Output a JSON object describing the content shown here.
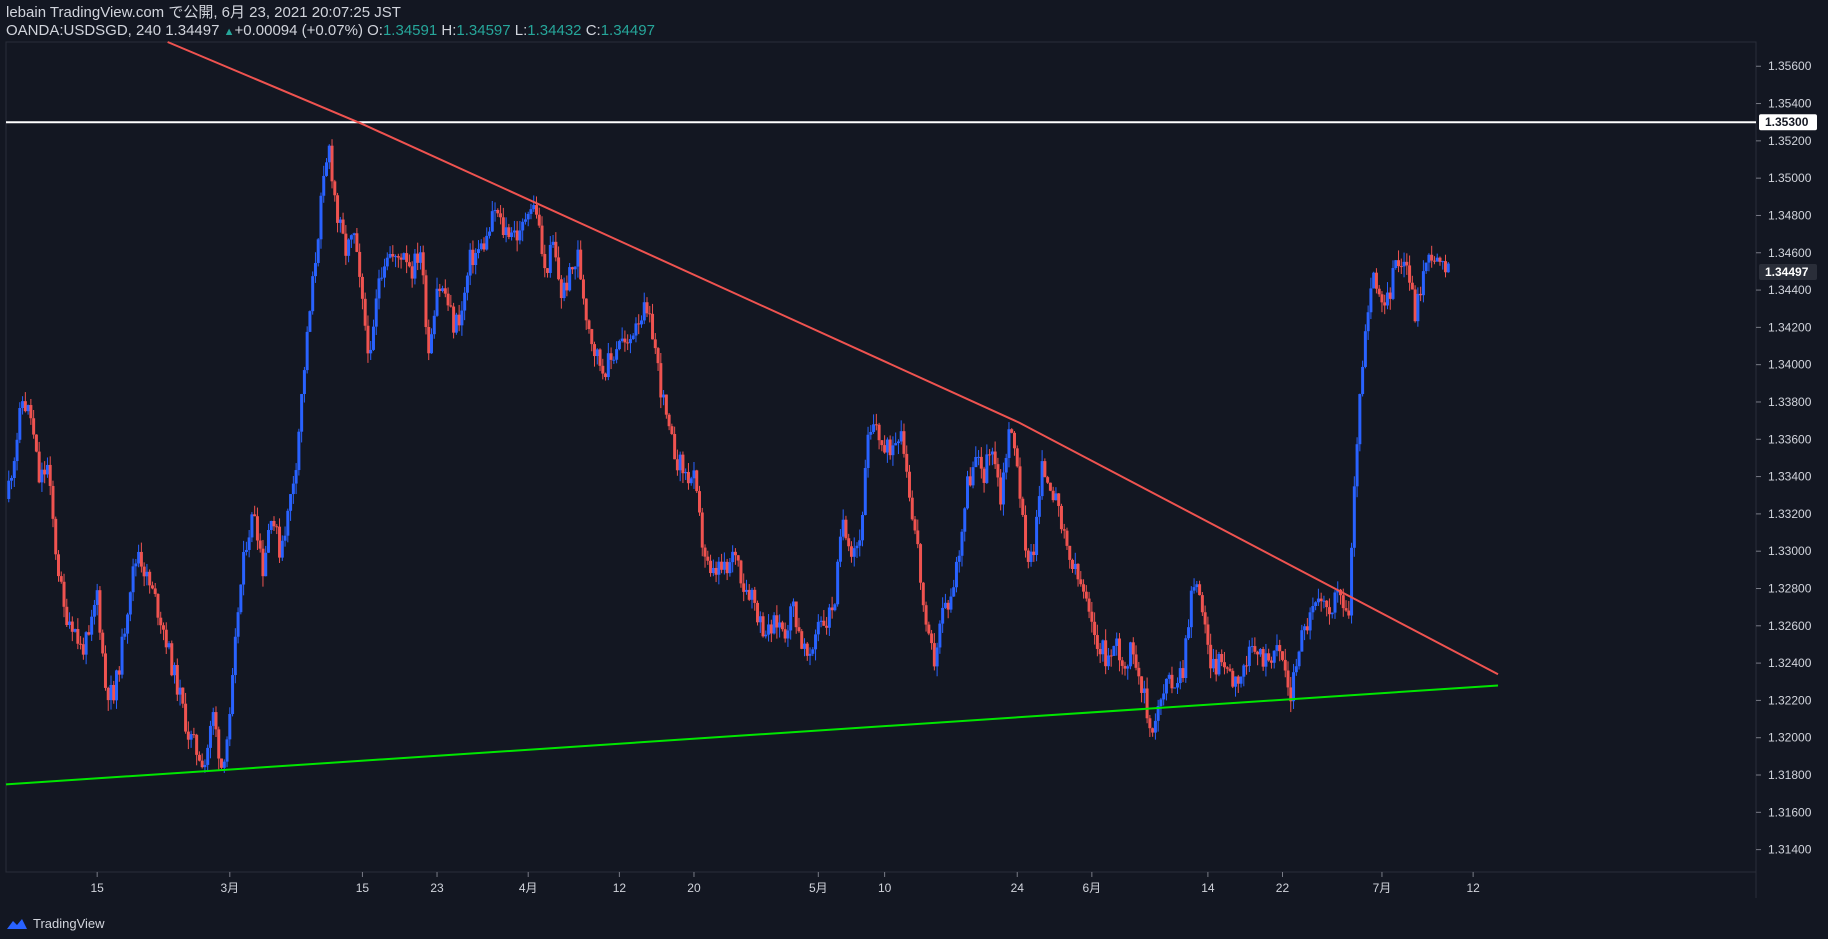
{
  "header": {
    "line1": "lebain TradingView.com で公開, 6月 23, 2021 20:07:25 JST",
    "symbol": "OANDA:USDSGD, 240",
    "last": "1.34497",
    "change": "+0.00094 (+0.07%)",
    "o_label": "O:",
    "o_value": "1.34591",
    "h_label": "H:",
    "h_value": "1.34597",
    "l_label": "L:",
    "l_value": "1.34432",
    "c_label": "C:",
    "c_value": "1.34497"
  },
  "footer": {
    "brand": "TradingView"
  },
  "colors": {
    "background": "#131722",
    "up": "#2962ff",
    "down": "#ef5350",
    "resistance": "#ef5350",
    "support": "#00e600",
    "horizontal": "#ffffff"
  },
  "chart_data": {
    "type": "candlestick",
    "symbol": "OANDA:USDSGD",
    "interval": "240",
    "y_range": [
      1.3128,
      1.3573
    ],
    "x_range_days": [
      0,
      180
    ],
    "y_ticks": [
      "1.35600",
      "1.35400",
      "1.35200",
      "1.35000",
      "1.34800",
      "1.34600",
      "1.34400",
      "1.34200",
      "1.34000",
      "1.33800",
      "1.33600",
      "1.33400",
      "1.33200",
      "1.33000",
      "1.32800",
      "1.32600",
      "1.32400",
      "1.32200",
      "1.32000",
      "1.31800",
      "1.31600",
      "1.31400"
    ],
    "x_ticks": [
      {
        "label": "15",
        "day": 11
      },
      {
        "label": "3月",
        "day": 27
      },
      {
        "label": "15",
        "day": 43
      },
      {
        "label": "23",
        "day": 52
      },
      {
        "label": "4月",
        "day": 63
      },
      {
        "label": "12",
        "day": 74
      },
      {
        "label": "20",
        "day": 83
      },
      {
        "label": "5月",
        "day": 98
      },
      {
        "label": "10",
        "day": 106
      },
      {
        "label": "24",
        "day": 122
      },
      {
        "label": "6月",
        "day": 131
      },
      {
        "label": "14",
        "day": 145
      },
      {
        "label": "22",
        "day": 154
      },
      {
        "label": "7月",
        "day": 166
      },
      {
        "label": "12",
        "day": 177
      }
    ],
    "price_path": [
      [
        0,
        1.3328
      ],
      [
        1,
        1.3352
      ],
      [
        2,
        1.3381
      ],
      [
        3,
        1.3372
      ],
      [
        4,
        1.3338
      ],
      [
        5,
        1.3345
      ],
      [
        6,
        1.3301
      ],
      [
        7,
        1.3268
      ],
      [
        8,
        1.3262
      ],
      [
        9,
        1.3248
      ],
      [
        10,
        1.3252
      ],
      [
        11,
        1.3278
      ],
      [
        12,
        1.3228
      ],
      [
        13,
        1.3221
      ],
      [
        14,
        1.3249
      ],
      [
        15,
        1.3282
      ],
      [
        16,
        1.3301
      ],
      [
        17,
        1.3285
      ],
      [
        18,
        1.3274
      ],
      [
        19,
        1.3259
      ],
      [
        20,
        1.3239
      ],
      [
        21,
        1.3222
      ],
      [
        22,
        1.3202
      ],
      [
        23,
        1.3193
      ],
      [
        24,
        1.3187
      ],
      [
        25,
        1.3212
      ],
      [
        26,
        1.3185
      ],
      [
        27,
        1.3208
      ],
      [
        28,
        1.3269
      ],
      [
        29,
        1.3306
      ],
      [
        30,
        1.3322
      ],
      [
        31,
        1.3291
      ],
      [
        32,
        1.3322
      ],
      [
        33,
        1.3301
      ],
      [
        34,
        1.3319
      ],
      [
        35,
        1.3349
      ],
      [
        36,
        1.3399
      ],
      [
        37,
        1.3443
      ],
      [
        38,
        1.3486
      ],
      [
        39,
        1.3516
      ],
      [
        40,
        1.3478
      ],
      [
        41,
        1.3461
      ],
      [
        42,
        1.3468
      ],
      [
        43,
        1.3431
      ],
      [
        44,
        1.3402
      ],
      [
        45,
        1.3448
      ],
      [
        46,
        1.3461
      ],
      [
        47,
        1.3455
      ],
      [
        48,
        1.3462
      ],
      [
        49,
        1.3451
      ],
      [
        50,
        1.3462
      ],
      [
        51,
        1.3408
      ],
      [
        52,
        1.3443
      ],
      [
        53,
        1.3438
      ],
      [
        54,
        1.3421
      ],
      [
        55,
        1.3428
      ],
      [
        56,
        1.3456
      ],
      [
        57,
        1.3461
      ],
      [
        58,
        1.3467
      ],
      [
        59,
        1.3483
      ],
      [
        60,
        1.3472
      ],
      [
        61,
        1.3473
      ],
      [
        62,
        1.3468
      ],
      [
        63,
        1.3486
      ],
      [
        64,
        1.3483
      ],
      [
        65,
        1.3449
      ],
      [
        66,
        1.3464
      ],
      [
        67,
        1.3438
      ],
      [
        68,
        1.3447
      ],
      [
        69,
        1.3458
      ],
      [
        70,
        1.3428
      ],
      [
        71,
        1.3408
      ],
      [
        72,
        1.3398
      ],
      [
        73,
        1.3402
      ],
      [
        74,
        1.3415
      ],
      [
        75,
        1.3408
      ],
      [
        76,
        1.3425
      ],
      [
        77,
        1.3428
      ],
      [
        78,
        1.3418
      ],
      [
        79,
        1.3388
      ],
      [
        80,
        1.3362
      ],
      [
        81,
        1.3349
      ],
      [
        82,
        1.3341
      ],
      [
        83,
        1.3338
      ],
      [
        84,
        1.3305
      ],
      [
        85,
        1.3285
      ],
      [
        86,
        1.3291
      ],
      [
        87,
        1.3288
      ],
      [
        88,
        1.3301
      ],
      [
        89,
        1.3282
      ],
      [
        90,
        1.3278
      ],
      [
        91,
        1.3262
      ],
      [
        92,
        1.3256
      ],
      [
        93,
        1.3262
      ],
      [
        94,
        1.3258
      ],
      [
        95,
        1.3271
      ],
      [
        96,
        1.3251
      ],
      [
        97,
        1.3239
      ],
      [
        98,
        1.3265
      ],
      [
        99,
        1.3262
      ],
      [
        100,
        1.3275
      ],
      [
        101,
        1.3318
      ],
      [
        102,
        1.3302
      ],
      [
        103,
        1.3306
      ],
      [
        104,
        1.3358
      ],
      [
        105,
        1.3368
      ],
      [
        106,
        1.3352
      ],
      [
        107,
        1.3358
      ],
      [
        108,
        1.3368
      ],
      [
        109,
        1.3332
      ],
      [
        110,
        1.3301
      ],
      [
        111,
        1.3255
      ],
      [
        112,
        1.3242
      ],
      [
        113,
        1.3268
      ],
      [
        114,
        1.3275
      ],
      [
        115,
        1.3301
      ],
      [
        116,
        1.3336
      ],
      [
        117,
        1.3348
      ],
      [
        118,
        1.3342
      ],
      [
        119,
        1.3358
      ],
      [
        120,
        1.3329
      ],
      [
        121,
        1.3366
      ],
      [
        122,
        1.3349
      ],
      [
        123,
        1.3298
      ],
      [
        124,
        1.3302
      ],
      [
        125,
        1.3344
      ],
      [
        126,
        1.3338
      ],
      [
        127,
        1.3319
      ],
      [
        128,
        1.3299
      ],
      [
        129,
        1.3288
      ],
      [
        130,
        1.3278
      ],
      [
        131,
        1.3258
      ],
      [
        132,
        1.3249
      ],
      [
        133,
        1.3242
      ],
      [
        134,
        1.3251
      ],
      [
        135,
        1.3238
      ],
      [
        136,
        1.3249
      ],
      [
        137,
        1.3229
      ],
      [
        138,
        1.3205
      ],
      [
        139,
        1.3215
      ],
      [
        140,
        1.3228
      ],
      [
        141,
        1.3231
      ],
      [
        142,
        1.3238
      ],
      [
        143,
        1.3278
      ],
      [
        144,
        1.3281
      ],
      [
        145,
        1.3245
      ],
      [
        146,
        1.3238
      ],
      [
        147,
        1.3242
      ],
      [
        148,
        1.3232
      ],
      [
        149,
        1.3235
      ],
      [
        150,
        1.3243
      ],
      [
        151,
        1.3246
      ],
      [
        152,
        1.3242
      ],
      [
        153,
        1.3248
      ],
      [
        154,
        1.3242
      ],
      [
        155,
        1.3222
      ],
      [
        156,
        1.3251
      ],
      [
        157,
        1.3262
      ],
      [
        158,
        1.3271
      ],
      [
        159,
        1.3269
      ],
      [
        160,
        1.3272
      ],
      [
        161,
        1.3276
      ],
      [
        162,
        1.3266
      ],
      [
        163,
        1.3362
      ],
      [
        164,
        1.3415
      ],
      [
        165,
        1.3448
      ],
      [
        166,
        1.3428
      ],
      [
        167,
        1.3441
      ],
      [
        168,
        1.3458
      ],
      [
        169,
        1.3455
      ],
      [
        170,
        1.3428
      ],
      [
        171,
        1.3449
      ],
      [
        172,
        1.3461
      ],
      [
        173,
        1.3452
      ],
      [
        174,
        1.3449
      ]
    ],
    "lines": {
      "horizontal_level": 1.353,
      "resistance": [
        [
          19.5,
          1.3573
        ],
        [
          43,
          1.3529
        ],
        [
          122.2,
          1.3369
        ],
        [
          180,
          1.3234
        ]
      ],
      "support": [
        [
          0,
          1.3175
        ],
        [
          180,
          1.3228
        ]
      ]
    },
    "price_labels": [
      {
        "value": 1.353,
        "text": "1.35300",
        "style": "white"
      },
      {
        "value": 1.34497,
        "text": "1.34497",
        "style": "dark"
      }
    ]
  }
}
